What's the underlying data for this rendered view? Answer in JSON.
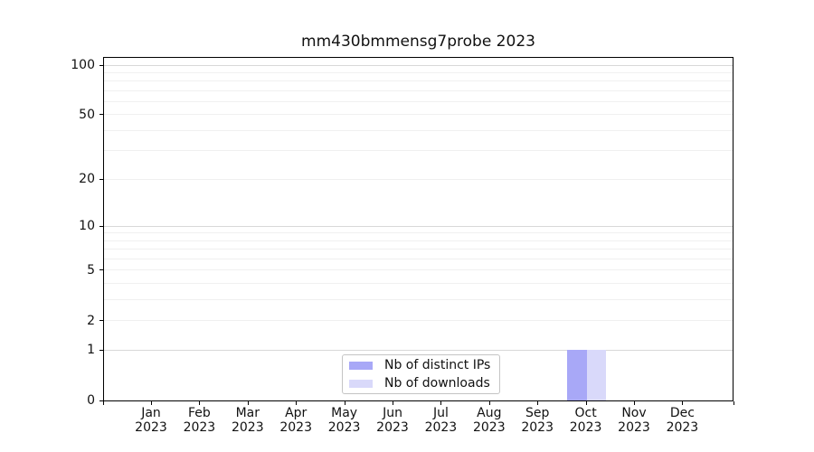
{
  "title": "mm430bmmensg7probe 2023",
  "legend": {
    "items": [
      {
        "label": "Nb of distinct IPs",
        "color": "#a8a8f7"
      },
      {
        "label": "Nb of downloads",
        "color": "#d9d9fa"
      }
    ]
  },
  "axes": {
    "x_tick_labels": [
      {
        "month": "Jan",
        "year": "2023"
      },
      {
        "month": "Feb",
        "year": "2023"
      },
      {
        "month": "Mar",
        "year": "2023"
      },
      {
        "month": "Apr",
        "year": "2023"
      },
      {
        "month": "May",
        "year": "2023"
      },
      {
        "month": "Jun",
        "year": "2023"
      },
      {
        "month": "Jul",
        "year": "2023"
      },
      {
        "month": "Aug",
        "year": "2023"
      },
      {
        "month": "Sep",
        "year": "2023"
      },
      {
        "month": "Oct",
        "year": "2023"
      },
      {
        "month": "Nov",
        "year": "2023"
      },
      {
        "month": "Dec",
        "year": "2023"
      }
    ],
    "y_tick_labels": [
      "0",
      "1",
      "2",
      "5",
      "10",
      "20",
      "50",
      "100"
    ]
  },
  "chart_data": {
    "type": "bar",
    "title": "mm430bmmensg7probe 2023",
    "categories": [
      "Jan 2023",
      "Feb 2023",
      "Mar 2023",
      "Apr 2023",
      "May 2023",
      "Jun 2023",
      "Jul 2023",
      "Aug 2023",
      "Sep 2023",
      "Oct 2023",
      "Nov 2023",
      "Dec 2023"
    ],
    "series": [
      {
        "name": "Nb of distinct IPs",
        "color": "#a8a8f7",
        "values": [
          0,
          0,
          0,
          0,
          0,
          0,
          0,
          0,
          0,
          1,
          0,
          0
        ]
      },
      {
        "name": "Nb of downloads",
        "color": "#d9d9fa",
        "values": [
          0,
          0,
          0,
          0,
          0,
          0,
          0,
          0,
          0,
          1,
          0,
          0
        ]
      }
    ],
    "xlabel": "",
    "ylabel": "",
    "yscale": "log1p",
    "ylim": [
      0,
      110
    ],
    "ytick_values": [
      0,
      1,
      2,
      5,
      10,
      20,
      50,
      100
    ],
    "ymajor_gridlines": [
      1,
      10,
      100
    ],
    "yminor_gridlines": [
      2,
      3,
      4,
      5,
      6,
      7,
      8,
      9,
      20,
      30,
      40,
      50,
      60,
      70,
      80,
      90
    ],
    "grid": "horizontal",
    "legend_position": "lower center"
  },
  "colors": {
    "background": "#ffffff",
    "spine": "#000000",
    "grid_major": "#d8d8d8",
    "grid_minor": "#f0f0f0",
    "legend_border": "#c4c4c4"
  }
}
